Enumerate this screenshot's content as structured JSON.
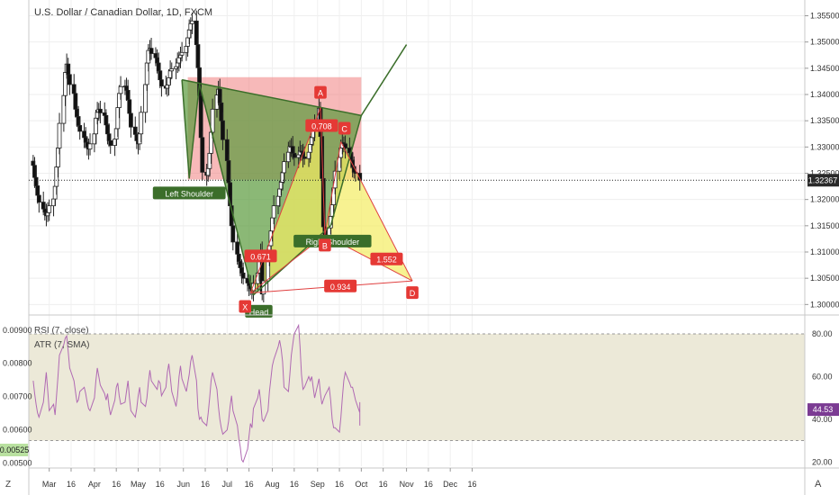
{
  "header": {
    "title": "U.S. Dollar / Canadian Dollar, 1D, FXCM"
  },
  "indicators": {
    "rsi_label": "RSI (7, close)",
    "atr_label": "ATR (7, SMA)"
  },
  "colors": {
    "up": "#3a3a3a",
    "down": "#111111",
    "bull_fill": "#5a9a3c",
    "bear_fill": "#f08080",
    "harmonic_fill": "#f4ec63",
    "harmonic_line": "#e04040",
    "rsi_line": "#b06ab3",
    "rsi_band": "#ece9d8",
    "label_red": "#e53935",
    "label_green": "#3b6e2a",
    "price_tag": "#2a2a2a",
    "rsi_tag": "#7b3b93",
    "atr_tag": "#b9e1a0"
  },
  "chart_data": [
    {
      "type": "candlestick",
      "title": "U.S. Dollar / Canadian Dollar, 1D, FXCM",
      "ylim": [
        1.298,
        1.358
      ],
      "ytick_labels": [
        "1.35500",
        "1.35000",
        "1.34500",
        "1.34000",
        "1.33500",
        "1.33000",
        "1.32500",
        "1.32000",
        "1.31500",
        "1.31000",
        "1.30500",
        "1.30000"
      ],
      "yticks": [
        1.355,
        1.35,
        1.345,
        1.34,
        1.335,
        1.33,
        1.325,
        1.32,
        1.315,
        1.31,
        1.305,
        1.3
      ],
      "xtick_labels": [
        "Mar",
        "16",
        "Apr",
        "16",
        "May",
        "16",
        "Jun",
        "16",
        "Jul",
        "16",
        "Aug",
        "16",
        "Sep",
        "16",
        "Oct",
        "16",
        "Nov",
        "16",
        "Dec",
        "16"
      ],
      "last_price": "1.32367",
      "closes": [
        1.3265,
        1.3242,
        1.3226,
        1.3208,
        1.3195,
        1.3182,
        1.3176,
        1.3169,
        1.3175,
        1.3188,
        1.3201,
        1.3225,
        1.3262,
        1.3298,
        1.3345,
        1.3398,
        1.3442,
        1.3458,
        1.3438,
        1.3419,
        1.3402,
        1.3372,
        1.3358,
        1.3341,
        1.333,
        1.3318,
        1.3309,
        1.33,
        1.3296,
        1.3306,
        1.3325,
        1.3355,
        1.3366,
        1.3372,
        1.3365,
        1.336,
        1.3342,
        1.3325,
        1.3312,
        1.3303,
        1.3315,
        1.3335,
        1.3375,
        1.3402,
        1.3415,
        1.3416,
        1.3408,
        1.339,
        1.3364,
        1.3338,
        1.3324,
        1.3312,
        1.3306,
        1.3325,
        1.3366,
        1.3419,
        1.346,
        1.3484,
        1.3488,
        1.3478,
        1.347,
        1.346,
        1.3445,
        1.3428,
        1.3416,
        1.3412,
        1.3418,
        1.3432,
        1.3445,
        1.3449,
        1.3453,
        1.346,
        1.347,
        1.3475,
        1.348,
        1.3492,
        1.3508,
        1.3523,
        1.3535,
        1.354,
        1.3495,
        1.3451,
        1.3398,
        1.3318,
        1.3252,
        1.3246,
        1.3259,
        1.3288,
        1.3328,
        1.3372,
        1.3399,
        1.341,
        1.3384,
        1.335,
        1.3314,
        1.3274,
        1.3232,
        1.3188,
        1.315,
        1.3119,
        1.3096,
        1.3082,
        1.307,
        1.306,
        1.305,
        1.3041,
        1.3036,
        1.303,
        1.3026,
        1.304,
        1.306,
        1.3082,
        1.31,
        1.302,
        1.3045,
        1.3085,
        1.3112,
        1.314,
        1.3165,
        1.3188,
        1.3206,
        1.322,
        1.3233,
        1.3251,
        1.3272,
        1.329,
        1.3301,
        1.3301,
        1.3288,
        1.328,
        1.3285,
        1.3292,
        1.329,
        1.3281,
        1.3278,
        1.329,
        1.3305,
        1.3318,
        1.3331,
        1.3346,
        1.3374,
        1.332,
        1.324,
        1.3148,
        1.313,
        1.3146,
        1.3168,
        1.319,
        1.3222,
        1.3254,
        1.328,
        1.3298,
        1.3308,
        1.3306,
        1.3298,
        1.3289,
        1.3275,
        1.3262,
        1.3252,
        1.325,
        1.3237
      ]
    },
    {
      "type": "pattern",
      "labels": {
        "left_shoulder": "Left Shoulder",
        "head": "Head",
        "right_shoulder": "Right Shoulder",
        "x": "X",
        "a": "A",
        "b": "B",
        "c": "C",
        "d": "D",
        "r_ab": "0.671",
        "r_bc": "0.708",
        "r_cd": "1.552",
        "r_xd": "0.934"
      },
      "points": {
        "x": [
          1.3022,
          "2019-07-17"
        ],
        "a": [
          1.3375,
          "2019-09-03"
        ],
        "b": [
          1.3132,
          "2019-09-06"
        ],
        "c": [
          1.331,
          "2019-09-17"
        ],
        "d": [
          1.3045,
          "2019-11-05"
        ]
      }
    },
    {
      "type": "line",
      "name": "RSI (7, close)",
      "ylim": [
        18,
        88
      ],
      "yticks": [
        20,
        40,
        60,
        80
      ],
      "ytick_labels": [
        "20.00",
        "40.00",
        "60.00",
        "80.00"
      ],
      "band": [
        30,
        80
      ],
      "last_value": "44.53",
      "values": [
        58,
        52,
        47,
        43,
        41,
        48,
        55,
        62,
        53,
        44,
        47,
        42,
        51,
        60,
        70,
        75,
        78,
        79,
        72,
        64,
        58,
        53,
        48,
        49,
        53,
        55,
        52,
        48,
        45,
        44,
        50,
        58,
        64,
        60,
        56,
        52,
        49,
        52,
        46,
        42,
        49,
        55,
        57,
        51,
        47,
        48,
        53,
        58,
        50,
        44,
        41,
        45,
        51,
        55,
        48,
        46,
        50,
        57,
        63,
        58,
        55,
        54,
        58,
        57,
        51,
        55,
        62,
        66,
        60,
        53,
        46,
        51,
        60,
        65,
        59,
        53,
        57,
        61,
        67,
        70,
        58,
        45,
        40,
        41,
        39,
        37,
        43,
        50,
        58,
        62,
        54,
        46,
        40,
        36,
        33,
        35,
        39,
        46,
        51,
        44,
        37,
        31,
        27,
        21,
        20,
        26,
        32,
        38,
        36,
        45,
        50,
        54,
        48,
        40,
        39,
        44,
        53,
        59,
        65,
        68,
        74,
        77,
        73,
        67,
        55,
        53,
        61,
        70,
        75,
        80,
        84,
        74,
        61,
        54,
        55,
        60,
        58,
        60,
        55,
        50,
        59,
        52,
        47,
        49,
        51,
        55,
        49,
        40,
        36,
        36,
        34,
        41,
        50,
        58,
        62,
        57,
        55,
        55,
        52,
        49,
        43,
        45,
        47,
        43,
        37,
        38,
        40,
        48,
        44,
        45
      ]
    },
    {
      "type": "line",
      "name": "ATR (7, SMA)",
      "ytick_labels": [
        "0.00900",
        "0.00800",
        "0.00700",
        "0.00600",
        "0.00500"
      ],
      "yticks": [
        0.009,
        0.008,
        0.007,
        0.006,
        0.005
      ],
      "last_value": "0.00525"
    }
  ]
}
